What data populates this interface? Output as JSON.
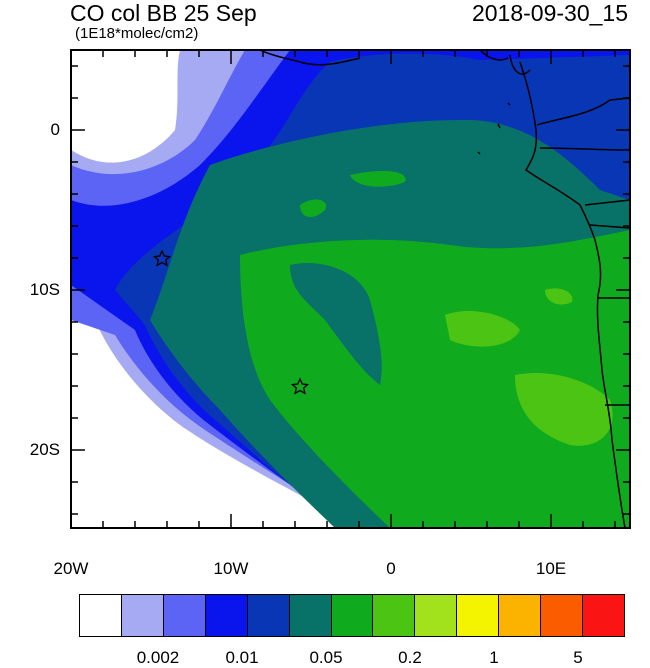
{
  "title": {
    "main": "CO col BB 25 Sep",
    "units": "(1E18*molec/cm2)",
    "datetime": "2018-09-30_15"
  },
  "axes": {
    "lat_labels": [
      "0",
      "10S",
      "20S"
    ],
    "lon_labels": [
      "20W",
      "10W",
      "0",
      "10E"
    ]
  },
  "colorbar": {
    "colors": [
      "#ffffff",
      "#a5aaf2",
      "#5c64f5",
      "#0a14ec",
      "#0836b5",
      "#087268",
      "#10aa1e",
      "#4cc414",
      "#a2e21c",
      "#f4f400",
      "#fbb300",
      "#fb5c00",
      "#fb1414"
    ],
    "labels": [
      "0.002",
      "0.01",
      "0.05",
      "0.2",
      "1",
      "5"
    ]
  },
  "markers": [
    {
      "name": "star",
      "lon": -14.4,
      "lat": -8.0
    },
    {
      "name": "star",
      "lon": -5.7,
      "lat": -16.0
    }
  ],
  "colors": {
    "frame": "#000000",
    "coastline": "#000000"
  }
}
